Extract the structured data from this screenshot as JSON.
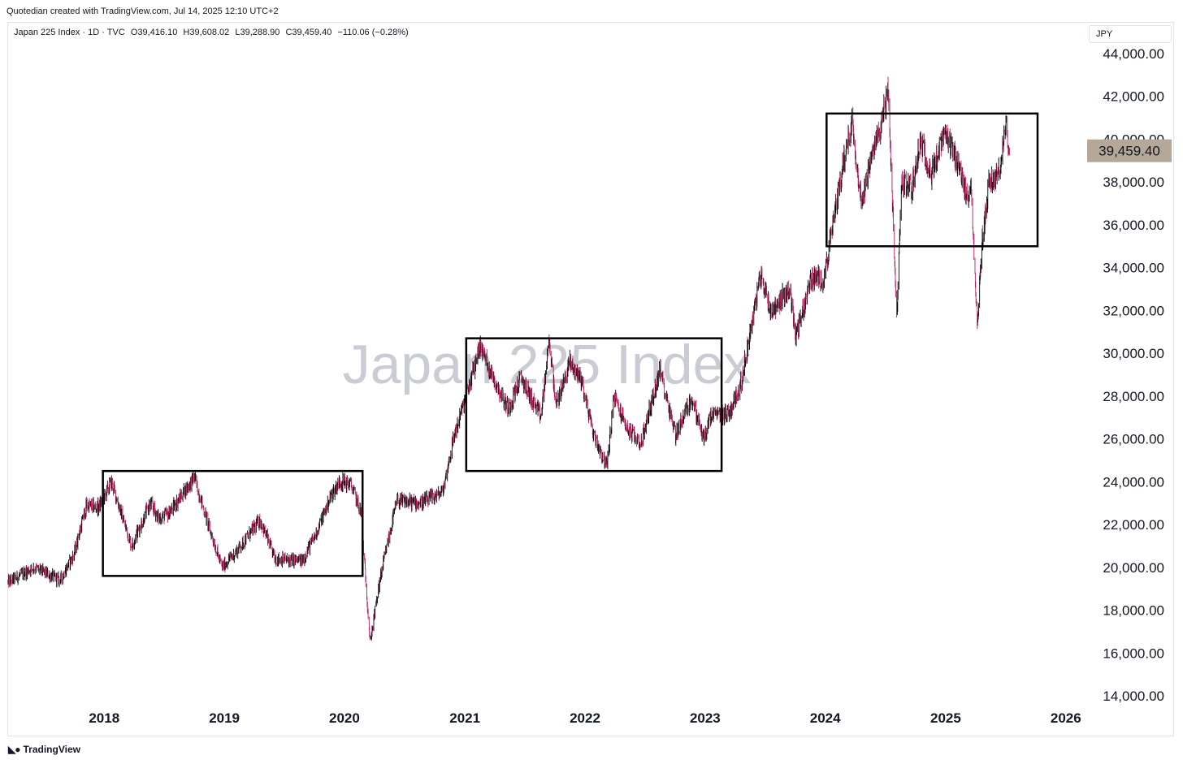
{
  "header": {
    "credit": "Quotedian created with TradingView.com, Jul 14, 2025 12:10 UTC+2"
  },
  "legend": {
    "symbol": "Japan 225 Index · 1D · TVC",
    "open": "O39,416.10",
    "high": "H39,608.02",
    "low": "L39,288.90",
    "close": "C39,459.40",
    "change": "−110.06 (−0.28%)"
  },
  "currency_label": "JPY",
  "watermark": "Japan 225 Index",
  "last_price_label": "39,459.40",
  "footer": {
    "logo_text": "TradingView",
    "logo_icon": "tradingview-logo-icon"
  },
  "colors": {
    "up": "#000000",
    "down": "#c2185b",
    "last_price_bg": "#b5a898",
    "watermark": "#c9ccd3"
  },
  "chart_data": {
    "type": "candlestick",
    "title": "Japan 225 Index",
    "ylabel": "JPY",
    "ylim": [
      13000,
      45000
    ],
    "y_ticks": [
      "14,000.00",
      "16,000.00",
      "18,000.00",
      "20,000.00",
      "22,000.00",
      "24,000.00",
      "26,000.00",
      "28,000.00",
      "30,000.00",
      "32,000.00",
      "34,000.00",
      "36,000.00",
      "38,000.00",
      "40,000.00",
      "42,000.00",
      "44,000.00"
    ],
    "x_ticks": [
      "2018",
      "2019",
      "2020",
      "2021",
      "2022",
      "2023",
      "2024",
      "2025",
      "2026"
    ],
    "xlim": [
      "2017-03-15",
      "2026-02-15"
    ],
    "grid": false,
    "last_price": 39459.4,
    "series": [
      {
        "dates": [
          "2017-03-15",
          "2017-06-01",
          "2017-08-20",
          "2017-10-01",
          "2017-11-08",
          "2017-12-15",
          "2018-01-23",
          "2018-03-25",
          "2018-05-21",
          "2018-06-15",
          "2018-07-15",
          "2018-10-02",
          "2018-11-15",
          "2018-12-25",
          "2019-01-30",
          "2019-04-20",
          "2019-06-04",
          "2019-08-26",
          "2019-10-10",
          "2019-11-20",
          "2019-12-17",
          "2020-01-20",
          "2020-02-20",
          "2020-03-19",
          "2020-04-20",
          "2020-06-08",
          "2020-08-20",
          "2020-10-25",
          "2020-11-30",
          "2021-01-15",
          "2021-02-16",
          "2021-03-25",
          "2021-05-13",
          "2021-06-20",
          "2021-08-20",
          "2021-09-14",
          "2021-10-06",
          "2021-11-15",
          "2021-12-20",
          "2022-01-27",
          "2022-03-09",
          "2022-03-30",
          "2022-05-12",
          "2022-06-20",
          "2022-08-17",
          "2022-10-03",
          "2022-11-20",
          "2022-12-28",
          "2023-01-20",
          "2023-03-15",
          "2023-04-20",
          "2023-06-19",
          "2023-07-20",
          "2023-09-15",
          "2023-10-04",
          "2023-11-20",
          "2023-12-29",
          "2024-02-20",
          "2024-03-22",
          "2024-04-19",
          "2024-05-20",
          "2024-07-11",
          "2024-08-05",
          "2024-08-20",
          "2024-09-20",
          "2024-10-15",
          "2024-11-20",
          "2024-12-27",
          "2025-02-10",
          "2025-03-05",
          "2025-03-20",
          "2025-04-07",
          "2025-04-20",
          "2025-05-13",
          "2025-06-10",
          "2025-07-03",
          "2025-07-14"
        ],
        "close": [
          19300,
          20000,
          19400,
          20600,
          22900,
          22800,
          24000,
          21000,
          23000,
          22300,
          22500,
          24200,
          21900,
          20000,
          20600,
          22200,
          20400,
          20300,
          21700,
          23300,
          24000,
          23900,
          22600,
          16500,
          19600,
          23100,
          23000,
          23500,
          26200,
          28500,
          30400,
          29000,
          27400,
          28900,
          27000,
          30600,
          27500,
          29600,
          28800,
          26200,
          24700,
          28000,
          26400,
          25800,
          29200,
          26200,
          27900,
          26000,
          27100,
          27200,
          28600,
          33700,
          32000,
          33000,
          30800,
          33500,
          33500,
          38500,
          40900,
          37100,
          39000,
          42200,
          31500,
          38000,
          37700,
          39900,
          38400,
          40200,
          38800,
          37200,
          37800,
          31000,
          35000,
          38000,
          38300,
          40500,
          39459
        ]
      }
    ],
    "annotations": {
      "boxes": [
        {
          "x0": "2017-12-28",
          "x1": "2020-02-25",
          "y0": 19600,
          "y1": 24500
        },
        {
          "x0": "2021-01-05",
          "x1": "2023-02-20",
          "y0": 24500,
          "y1": 30700
        },
        {
          "x0": "2024-01-05",
          "x1": "2026-03-01",
          "y0": 35000,
          "y1": 41200
        }
      ]
    }
  }
}
